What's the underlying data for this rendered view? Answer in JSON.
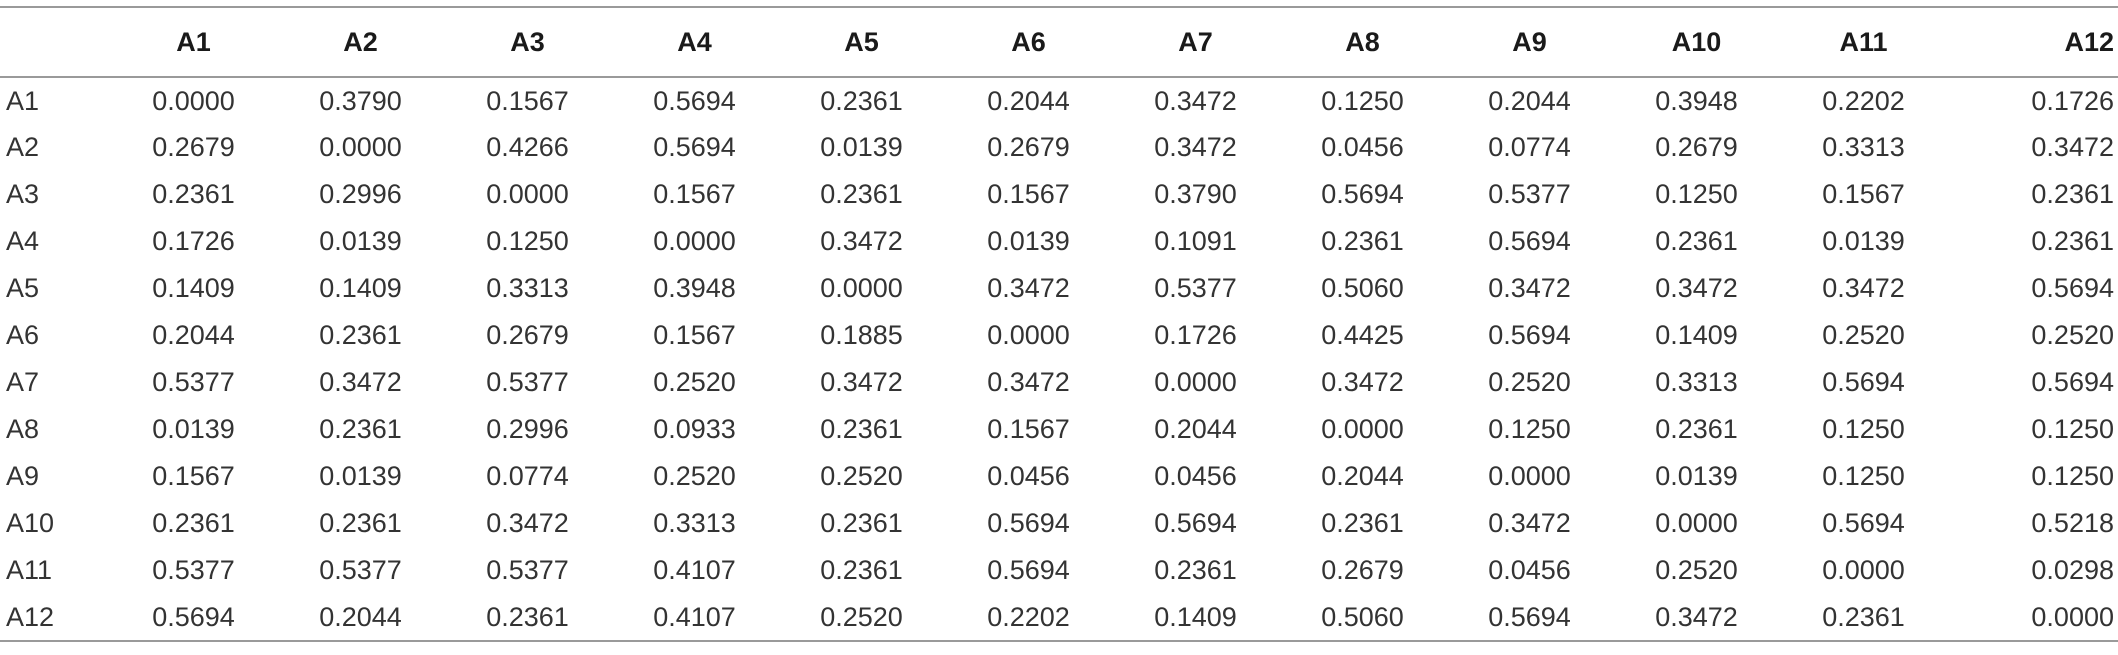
{
  "table": {
    "corner": "",
    "columns": [
      "A1",
      "A2",
      "A3",
      "A4",
      "A5",
      "A6",
      "A7",
      "A8",
      "A9",
      "A10",
      "A11",
      "A12"
    ],
    "rows": [
      {
        "label": "A1",
        "values": [
          "0.0000",
          "0.3790",
          "0.1567",
          "0.5694",
          "0.2361",
          "0.2044",
          "0.3472",
          "0.1250",
          "0.2044",
          "0.3948",
          "0.2202",
          "0.1726"
        ]
      },
      {
        "label": "A2",
        "values": [
          "0.2679",
          "0.0000",
          "0.4266",
          "0.5694",
          "0.0139",
          "0.2679",
          "0.3472",
          "0.0456",
          "0.0774",
          "0.2679",
          "0.3313",
          "0.3472"
        ]
      },
      {
        "label": "A3",
        "values": [
          "0.2361",
          "0.2996",
          "0.0000",
          "0.1567",
          "0.2361",
          "0.1567",
          "0.3790",
          "0.5694",
          "0.5377",
          "0.1250",
          "0.1567",
          "0.2361"
        ]
      },
      {
        "label": "A4",
        "values": [
          "0.1726",
          "0.0139",
          "0.1250",
          "0.0000",
          "0.3472",
          "0.0139",
          "0.1091",
          "0.2361",
          "0.5694",
          "0.2361",
          "0.0139",
          "0.2361"
        ]
      },
      {
        "label": "A5",
        "values": [
          "0.1409",
          "0.1409",
          "0.3313",
          "0.3948",
          "0.0000",
          "0.3472",
          "0.5377",
          "0.5060",
          "0.3472",
          "0.3472",
          "0.3472",
          "0.5694"
        ]
      },
      {
        "label": "A6",
        "values": [
          "0.2044",
          "0.2361",
          "0.2679",
          "0.1567",
          "0.1885",
          "0.0000",
          "0.1726",
          "0.4425",
          "0.5694",
          "0.1409",
          "0.2520",
          "0.2520"
        ]
      },
      {
        "label": "A7",
        "values": [
          "0.5377",
          "0.3472",
          "0.5377",
          "0.2520",
          "0.3472",
          "0.3472",
          "0.0000",
          "0.3472",
          "0.2520",
          "0.3313",
          "0.5694",
          "0.5694"
        ]
      },
      {
        "label": "A8",
        "values": [
          "0.0139",
          "0.2361",
          "0.2996",
          "0.0933",
          "0.2361",
          "0.1567",
          "0.2044",
          "0.0000",
          "0.1250",
          "0.2361",
          "0.1250",
          "0.1250"
        ]
      },
      {
        "label": "A9",
        "values": [
          "0.1567",
          "0.0139",
          "0.0774",
          "0.2520",
          "0.2520",
          "0.0456",
          "0.0456",
          "0.2044",
          "0.0000",
          "0.0139",
          "0.1250",
          "0.1250"
        ]
      },
      {
        "label": "A10",
        "values": [
          "0.2361",
          "0.2361",
          "0.3472",
          "0.3313",
          "0.2361",
          "0.5694",
          "0.5694",
          "0.2361",
          "0.3472",
          "0.0000",
          "0.5694",
          "0.5218"
        ]
      },
      {
        "label": "A11",
        "values": [
          "0.5377",
          "0.5377",
          "0.5377",
          "0.4107",
          "0.2361",
          "0.5694",
          "0.2361",
          "0.2679",
          "0.0456",
          "0.2520",
          "0.0000",
          "0.0298"
        ]
      },
      {
        "label": "A12",
        "values": [
          "0.5694",
          "0.2044",
          "0.2361",
          "0.4107",
          "0.2520",
          "0.2202",
          "0.1409",
          "0.5060",
          "0.5694",
          "0.3472",
          "0.2361",
          "0.0000"
        ]
      }
    ]
  },
  "colors": {
    "text": "#333333",
    "header_text": "#1a1a1a",
    "rule": "#9a9a9a",
    "background": "#ffffff"
  }
}
